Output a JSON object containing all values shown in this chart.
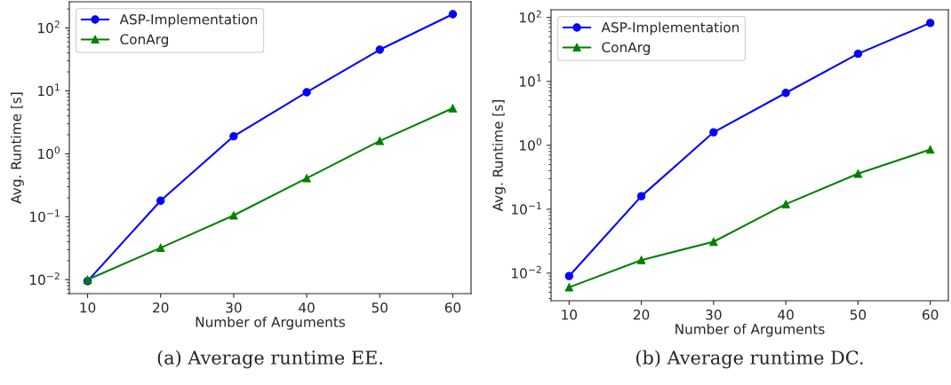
{
  "chart_data": [
    {
      "type": "line",
      "xlabel": "Number of Arguments",
      "ylabel": "Avg. Runtime [s]",
      "log": "y",
      "legend": "top left",
      "grid": false,
      "x": [
        10,
        20,
        30,
        40,
        50,
        60
      ],
      "xlim": [
        7.5,
        62.5
      ],
      "xticks": [
        10,
        20,
        30,
        40,
        50,
        60
      ],
      "ylim": [
        0.006,
        260
      ],
      "yticks": [
        {
          "value": 0.01,
          "label": "10$^{−2}$"
        },
        {
          "value": 0.1,
          "label": "10$^{−1}$"
        },
        {
          "value": 1,
          "label": "10$^{0}$"
        },
        {
          "value": 10,
          "label": "10$^{1}$"
        },
        {
          "value": 100,
          "label": "10$^{2}$"
        }
      ],
      "series": [
        {
          "name": "ASP-Implementation",
          "color": "#0000ff",
          "marker": "circle",
          "values": [
            0.0095,
            0.18,
            1.9,
            9.5,
            45,
            165
          ]
        },
        {
          "name": "ConArg",
          "color": "#008000",
          "marker": "triangle",
          "values": [
            0.01,
            0.032,
            0.105,
            0.41,
            1.6,
            5.3
          ]
        }
      ],
      "annotations": [
        "(a) Average runtime EE."
      ]
    },
    {
      "type": "line",
      "xlabel": "Number of Arguments",
      "ylabel": "Avg. Runtime [s]",
      "log": "y",
      "legend": "top left",
      "grid": false,
      "x": [
        10,
        20,
        30,
        40,
        50,
        60
      ],
      "xlim": [
        7.5,
        62.5
      ],
      "xticks": [
        10,
        20,
        30,
        40,
        50,
        60
      ],
      "ylim": [
        0.0037,
        132
      ],
      "yticks": [
        {
          "value": 0.01,
          "label": "10$^{−2}$"
        },
        {
          "value": 0.1,
          "label": "10$^{−1}$"
        },
        {
          "value": 1,
          "label": "10$^{0}$"
        },
        {
          "value": 10,
          "label": "10$^{1}$"
        },
        {
          "value": 100,
          "label": "10$^{2}$"
        }
      ],
      "series": [
        {
          "name": "ASP-Implementation",
          "color": "#0000ff",
          "marker": "circle",
          "values": [
            0.009,
            0.16,
            1.6,
            6.6,
            27,
            82
          ]
        },
        {
          "name": "ConArg",
          "color": "#008000",
          "marker": "triangle",
          "values": [
            0.006,
            0.016,
            0.031,
            0.12,
            0.36,
            0.86
          ]
        }
      ],
      "annotations": [
        "(b) Average runtime DC."
      ]
    }
  ]
}
